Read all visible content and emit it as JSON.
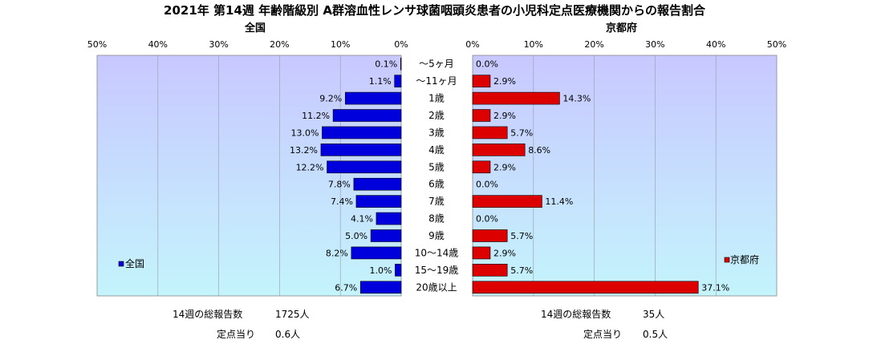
{
  "title": "2021年 第14週 年齢階級別 A群溶血性レンサ球菌咽頭炎患者の小児科定点医療機関からの報告割合",
  "categories": [
    "～5ヶ月",
    "～11ヶ月",
    "1歳",
    "2歳",
    "3歳",
    "4歳",
    "5歳",
    "6歳",
    "7歳",
    "8歳",
    "9歳",
    "10～14歳",
    "15～19歳",
    "20歳以上"
  ],
  "axis_ticks": [
    "50%",
    "40%",
    "30%",
    "20%",
    "10%",
    "0%"
  ],
  "axis_ticks_right": [
    "0%",
    "10%",
    "20%",
    "30%",
    "40%",
    "50%"
  ],
  "colors": {
    "national": "#0000dd",
    "kyoto": "#dd0000",
    "bg_top": "#c8c8ff",
    "bg_bottom": "#c4f4fc"
  },
  "panels": {
    "left": {
      "title": "全国",
      "legend": "全国"
    },
    "right": {
      "title": "京都府",
      "legend": "京都府"
    }
  },
  "footer": {
    "left": {
      "total_label": "14週の総報告数",
      "total_value": "1725人",
      "per_label": "定点当り",
      "per_value": "0.6人"
    },
    "right": {
      "total_label": "14週の総報告数",
      "total_value": "35人",
      "per_label": "定点当り",
      "per_value": "0.5人"
    }
  },
  "chart_data": [
    {
      "type": "bar",
      "title": "全国",
      "categories": [
        "～5ヶ月",
        "～11ヶ月",
        "1歳",
        "2歳",
        "3歳",
        "4歳",
        "5歳",
        "6歳",
        "7歳",
        "8歳",
        "9歳",
        "10～14歳",
        "15～19歳",
        "20歳以上"
      ],
      "series": [
        {
          "name": "全国",
          "values": [
            0.1,
            1.1,
            9.2,
            11.2,
            13.0,
            13.2,
            12.2,
            7.8,
            7.4,
            4.1,
            5.0,
            8.2,
            1.0,
            6.7
          ]
        }
      ],
      "xlim": [
        0,
        50
      ],
      "legend": "left",
      "grid": true
    },
    {
      "type": "bar",
      "title": "京都府",
      "categories": [
        "～5ヶ月",
        "～11ヶ月",
        "1歳",
        "2歳",
        "3歳",
        "4歳",
        "5歳",
        "6歳",
        "7歳",
        "8歳",
        "9歳",
        "10～14歳",
        "15～19歳",
        "20歳以上"
      ],
      "series": [
        {
          "name": "京都府",
          "values": [
            0.0,
            2.9,
            14.3,
            2.9,
            5.7,
            8.6,
            2.9,
            0.0,
            11.4,
            0.0,
            5.7,
            2.9,
            5.7,
            37.1
          ]
        }
      ],
      "xlim": [
        0,
        50
      ],
      "legend": "right",
      "grid": true
    }
  ]
}
